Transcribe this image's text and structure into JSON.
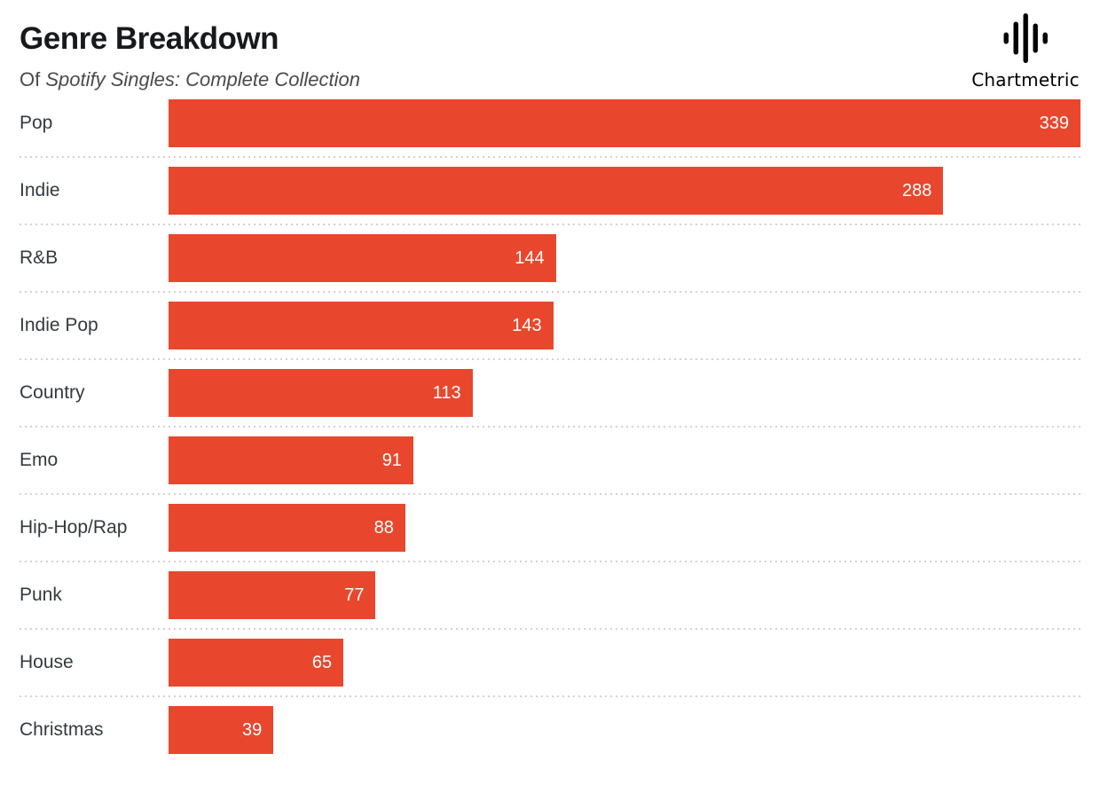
{
  "header": {
    "title": "Genre Breakdown",
    "subtitle_prefix": "Of ",
    "subtitle_italic": "Spotify Singles: Complete Collection"
  },
  "logo": {
    "wordmark": "Chartmetric",
    "icon": "chartmetric-waveform-icon",
    "color": "#000000"
  },
  "chart_data": {
    "type": "bar",
    "orientation": "horizontal",
    "title": "Genre Breakdown",
    "subtitle": "Of Spotify Singles: Complete Collection",
    "categories": [
      "Pop",
      "Indie",
      "R&B",
      "Indie Pop",
      "Country",
      "Emo",
      "Hip-Hop/Rap",
      "Punk",
      "House",
      "Christmas"
    ],
    "values": [
      339,
      288,
      144,
      143,
      113,
      91,
      88,
      77,
      65,
      39
    ],
    "xlabel": "",
    "ylabel": "",
    "xlim": [
      0,
      339
    ],
    "grid": false,
    "value_labels": "inside-end",
    "bar_color": "#E9472D",
    "value_label_color": "#FFFFFF",
    "separator_style": "dotted"
  }
}
